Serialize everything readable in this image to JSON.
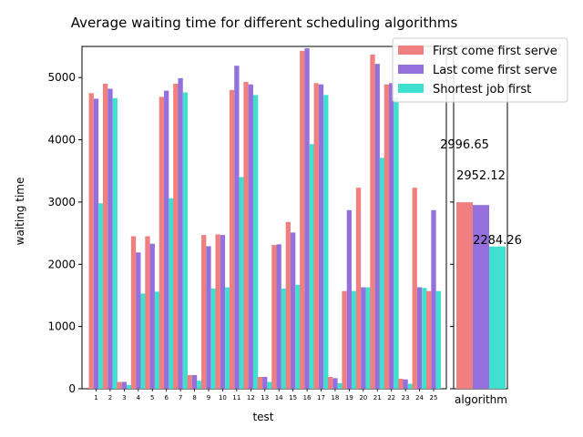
{
  "chart_data": [
    {
      "type": "bar",
      "title": "Average waiting time for different scheduling algorithms",
      "xlabel": "test",
      "ylabel": "waiting time",
      "ylim": [
        0,
        5500
      ],
      "yticks": [
        0,
        1000,
        2000,
        3000,
        4000,
        5000
      ],
      "grid": false,
      "categories": [
        "1",
        "2",
        "3",
        "4",
        "5",
        "6",
        "7",
        "8",
        "9",
        "10",
        "11",
        "12",
        "13",
        "14",
        "15",
        "16",
        "17",
        "18",
        "19",
        "20",
        "21",
        "22",
        "23",
        "24",
        "25"
      ],
      "series": [
        {
          "name": "First come first serve",
          "color": "#f08080",
          "values": [
            4750,
            4900,
            110,
            2450,
            2450,
            4690,
            4900,
            220,
            2470,
            2480,
            4800,
            4930,
            190,
            2310,
            2680,
            5430,
            4910,
            190,
            1570,
            3230,
            5370,
            4890,
            160,
            3230,
            1570
          ]
        },
        {
          "name": "Last come first serve",
          "color": "#9370db",
          "values": [
            4660,
            4820,
            110,
            2190,
            2330,
            4790,
            4990,
            220,
            2290,
            2470,
            5190,
            4890,
            190,
            2320,
            2510,
            5470,
            4890,
            170,
            2870,
            1630,
            5220,
            4910,
            150,
            1630,
            2870
          ]
        },
        {
          "name": "Shortest job first",
          "color": "#40e0d0",
          "values": [
            2980,
            4670,
            60,
            1530,
            1560,
            3060,
            4760,
            130,
            1610,
            1630,
            3400,
            4720,
            110,
            1610,
            1670,
            3930,
            4720,
            90,
            1570,
            1630,
            3710,
            4670,
            80,
            1620,
            1570
          ]
        }
      ],
      "legend": {
        "position": "top-right",
        "entries": [
          "First come first serve",
          "Last come first serve",
          "Shortest job first"
        ]
      }
    },
    {
      "type": "bar",
      "xlabel": "algorithm",
      "ylim": [
        0,
        5500
      ],
      "categories": [
        "First come first serve",
        "Last come first serve",
        "Shortest job first"
      ],
      "values": [
        2996.65,
        2952.12,
        2284.26
      ],
      "data_labels": [
        "2996.65",
        "2952.12",
        "2284.26"
      ],
      "colors": [
        "#f08080",
        "#9370db",
        "#40e0d0"
      ]
    }
  ]
}
